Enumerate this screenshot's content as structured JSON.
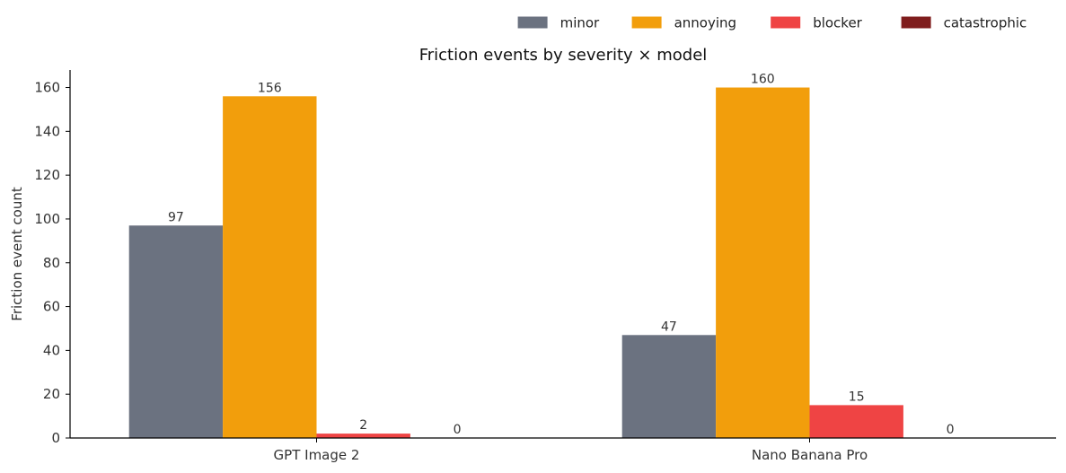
{
  "chart_data": {
    "type": "bar",
    "title": "Friction events by severity × model",
    "xlabel": "",
    "ylabel": "Friction event count",
    "categories": [
      "GPT Image 2",
      "Nano Banana Pro"
    ],
    "series": [
      {
        "name": "minor",
        "values": [
          97,
          47
        ],
        "color": "#6b7280"
      },
      {
        "name": "annoying",
        "values": [
          156,
          160
        ],
        "color": "#f29e0c"
      },
      {
        "name": "blocker",
        "values": [
          2,
          15
        ],
        "color": "#ef4444"
      },
      {
        "name": "catastrophic",
        "values": [
          0,
          0
        ],
        "color": "#7f1d1d"
      }
    ],
    "ylim": [
      0,
      168
    ],
    "yticks": [
      0,
      20,
      40,
      60,
      80,
      100,
      120,
      140,
      160
    ],
    "grid": false,
    "legend_position": "top-right",
    "data_labels": true
  }
}
